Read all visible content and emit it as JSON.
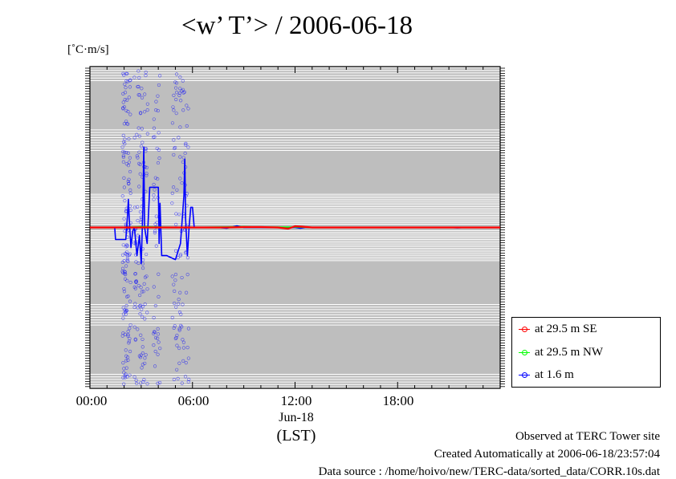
{
  "title": "<w’ T’> / 2006-06-18",
  "unit_label": "[˚C·m/s]",
  "x_tick_labels": [
    "00:00",
    "06:00",
    "12:00",
    "18:00"
  ],
  "date_label": "Jun-18",
  "time_zone_label": "(LST)",
  "footer": {
    "observed": "Observed at TERC Tower site",
    "created": "Created Automatically at 2006-06-18/23:57:04",
    "source": "Data source : /home/hoivo/new/TERC-data/sorted_data/CORR.10s.dat"
  },
  "colors": {
    "plot_background": "#bebebe",
    "gridline": "#ffffff",
    "series_se": "#ff0000",
    "series_nw": "#00ff00",
    "series_low": "#0000ff"
  },
  "chart_data": {
    "type": "line",
    "xlabel": "",
    "ylabel": "[˚C·m/s]",
    "xlim_hours": [
      0,
      24
    ],
    "ylim": [
      -0.4,
      0.4
    ],
    "x_units": "hours (LST)",
    "series": [
      {
        "name": "at 29.5 m SE",
        "color": "#ff0000",
        "x": [
          0,
          2,
          4,
          6,
          8,
          9,
          10,
          11,
          11.6,
          12,
          12.4,
          13,
          16,
          20,
          24
        ],
        "y": [
          0.0,
          0.0,
          0.0,
          0.0,
          0.0,
          0.001,
          0.001,
          0.0,
          -0.003,
          0.003,
          0.002,
          0.0,
          0.0,
          0.0,
          0.0
        ]
      },
      {
        "name": "at 29.5 m NW",
        "color": "#00ff00",
        "x": [
          0,
          2,
          3,
          4,
          6,
          9,
          10,
          12,
          13,
          16,
          20,
          24
        ],
        "y": [
          0.0,
          0.0,
          0.002,
          0.001,
          0.0,
          0.002,
          0.001,
          0.001,
          0.0,
          0.0,
          0.0,
          0.0
        ]
      },
      {
        "name": "at 1.6 m",
        "color": "#0000ff",
        "x": [
          1.45,
          1.5,
          2.1,
          2.2,
          2.25,
          2.3,
          2.4,
          2.5,
          2.6,
          2.75,
          2.9,
          3.0,
          3.1,
          3.15,
          3.2,
          3.35,
          3.5,
          3.8,
          4.0,
          4.05,
          4.1,
          4.2,
          4.5,
          5.0,
          5.3,
          5.5,
          5.55,
          5.6,
          5.7,
          5.8,
          5.9,
          6.0,
          6.1,
          6.2,
          6.3,
          6.4,
          6.5,
          7.5,
          8.0,
          8.2,
          8.6,
          9.0,
          10.0,
          11.0,
          11.5,
          12.0,
          12.3,
          12.6,
          13.0,
          16.0,
          20.0,
          21.0,
          21.5,
          22.0
        ],
        "y": [
          0.0,
          -0.03,
          -0.03,
          0.03,
          0.07,
          0.02,
          -0.05,
          -0.01,
          0.0,
          -0.07,
          -0.02,
          -0.09,
          0.05,
          0.2,
          0.0,
          -0.04,
          0.1,
          0.1,
          0.1,
          -0.04,
          0.06,
          -0.07,
          -0.07,
          -0.08,
          -0.04,
          0.08,
          0.17,
          0.02,
          -0.07,
          0.0,
          0.05,
          0.05,
          0.0,
          0.0,
          0.0,
          0.0,
          0.0,
          0.0,
          -0.002,
          0.0,
          0.004,
          0.0,
          0.0,
          0.0,
          0.0,
          0.0,
          -0.002,
          0.0,
          0.0,
          0.0,
          0.0,
          0.0,
          -0.001,
          0.0
        ]
      }
    ],
    "legend_position": "bottom-right, outside plot",
    "grid": true
  }
}
